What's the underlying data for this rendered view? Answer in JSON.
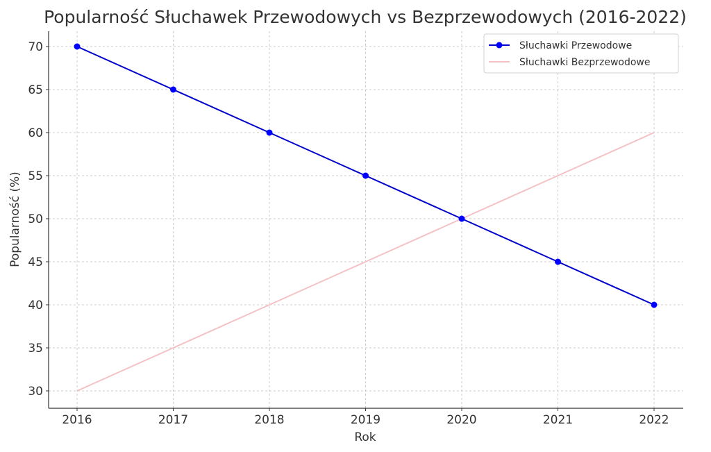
{
  "chart_data": {
    "type": "line",
    "title": "Popularność Słuchawek Przewodowych vs Bezprzewodowych (2016-2022)",
    "xlabel": "Rok",
    "ylabel": "Popularność (%)",
    "x": [
      "2016",
      "2017",
      "2018",
      "2019",
      "2020",
      "2021",
      "2022"
    ],
    "categories": [
      "2016",
      "2017",
      "2018",
      "2019",
      "2020",
      "2021",
      "2022"
    ],
    "series": [
      {
        "name": "Słuchawki Przewodowe",
        "values": [
          70,
          65,
          60,
          55,
          50,
          45,
          40
        ],
        "color": "#0000cc",
        "marker": "circle"
      },
      {
        "name": "Słuchawki Bezprzewodowe",
        "values": [
          30,
          35,
          40,
          45,
          50,
          55,
          60
        ],
        "color": "#f4c2c6",
        "marker": "none"
      }
    ],
    "yticks": [
      "30",
      "35",
      "40",
      "45",
      "50",
      "55",
      "60",
      "65",
      "70"
    ],
    "ylim": [
      28,
      72
    ],
    "grid": true,
    "legend_position": "upper right"
  }
}
